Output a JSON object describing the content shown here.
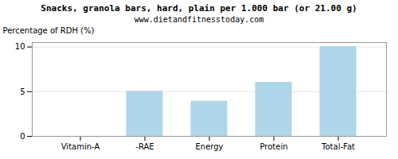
{
  "chart_data": {
    "type": "bar",
    "title": "Snacks, granola bars, hard, plain per 1.000 bar (or 21.00 g)",
    "subtitle": "www.dietandfitnesstoday.com",
    "categories": [
      "Vitamin-A",
      "-RAE",
      "Energy",
      "Protein",
      "Total-Fat"
    ],
    "values": [
      0,
      5.0,
      3.9,
      6.0,
      10.0
    ],
    "color": "#aed6e8",
    "ylabel": "Percentage of RDH (%)",
    "ylim": [
      0,
      10.5
    ],
    "yticks": [
      0,
      5,
      10
    ],
    "grid": true
  }
}
